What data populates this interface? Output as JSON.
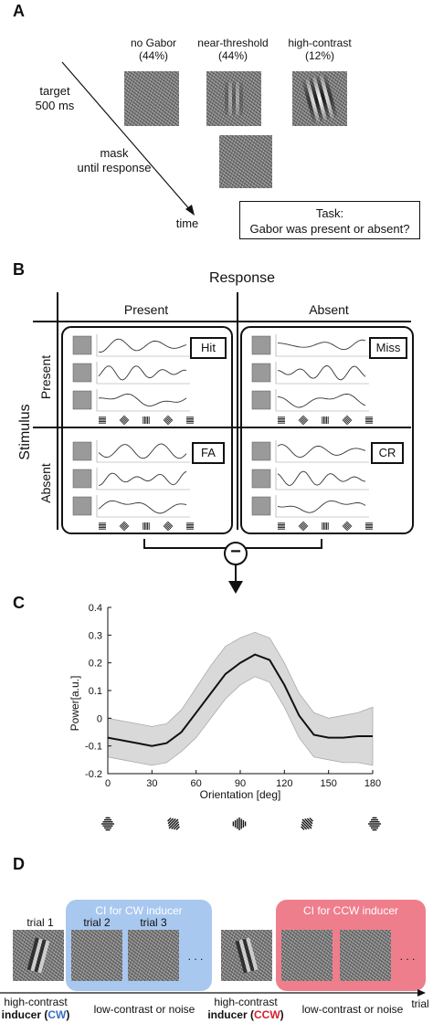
{
  "panel_a": {
    "letter": "A",
    "stim_labels": [
      {
        "name": "no Gabor",
        "pct": "(44%)"
      },
      {
        "name": "near-threshold",
        "pct": "(44%)"
      },
      {
        "name": "high-contrast",
        "pct": "(12%)"
      }
    ],
    "target_label": "target",
    "target_time": "500 ms",
    "mask_label": "mask",
    "mask_time": "until response",
    "time_label": "time",
    "task_title": "Task:",
    "task_text": "Gabor was present or absent?"
  },
  "panel_b": {
    "letter": "B",
    "response_title": "Response",
    "col_present": "Present",
    "col_absent": "Absent",
    "stimulus_title": "Stimulus",
    "row_present": "Present",
    "row_absent": "Absent",
    "cells": {
      "hit": "Hit",
      "miss": "Miss",
      "fa": "FA",
      "cr": "CR"
    },
    "minus": "−"
  },
  "panel_c": {
    "letter": "C",
    "chart_data": {
      "type": "line",
      "xlabel": "Orientation [deg]",
      "ylabel": "Power[a.u.]",
      "x": [
        0,
        10,
        20,
        30,
        40,
        50,
        60,
        70,
        80,
        90,
        100,
        110,
        120,
        130,
        140,
        150,
        160,
        170,
        180
      ],
      "y": [
        -0.07,
        -0.08,
        -0.09,
        -0.1,
        -0.09,
        -0.05,
        0.02,
        0.09,
        0.16,
        0.2,
        0.23,
        0.21,
        0.12,
        0.01,
        -0.06,
        -0.07,
        -0.07,
        -0.065,
        -0.065
      ],
      "ci_upper": [
        0.0,
        -0.01,
        -0.02,
        -0.03,
        -0.02,
        0.03,
        0.11,
        0.19,
        0.26,
        0.29,
        0.31,
        0.29,
        0.2,
        0.09,
        0.02,
        0.0,
        0.01,
        0.02,
        0.04
      ],
      "ci_lower": [
        -0.14,
        -0.15,
        -0.16,
        -0.17,
        -0.16,
        -0.12,
        -0.07,
        0.0,
        0.07,
        0.12,
        0.15,
        0.13,
        0.04,
        -0.07,
        -0.14,
        -0.15,
        -0.16,
        -0.16,
        -0.17
      ],
      "xlim": [
        0,
        180
      ],
      "ylim": [
        -0.2,
        0.4
      ],
      "xticks": [
        "0",
        "30",
        "60",
        "90",
        "120",
        "150",
        "180"
      ],
      "yticks": [
        "0.4",
        "0.3",
        "0.2",
        "0.1",
        "0",
        "-0.1",
        "-0.2"
      ],
      "line_color": "#111111",
      "band_color": "#d9d9d9",
      "grid": false
    }
  },
  "panel_d": {
    "letter": "D",
    "ci_cw": "CI for CW inducer",
    "ci_ccw": "CI for CCW inducer",
    "cw_color": "#a9c8ef",
    "ccw_color": "#ef7e8c",
    "trials": [
      "trial 1",
      "trial 2",
      "trial 3"
    ],
    "dots": ". . .",
    "hc_label": "high-contrast",
    "inducer_word": "inducer",
    "cw": "CW",
    "ccw": "CCW",
    "cw_text_color": "#3a6fc7",
    "ccw_text_color": "#d51f2f",
    "low_label": "low-contrast or noise",
    "trial_axis": "trial"
  }
}
